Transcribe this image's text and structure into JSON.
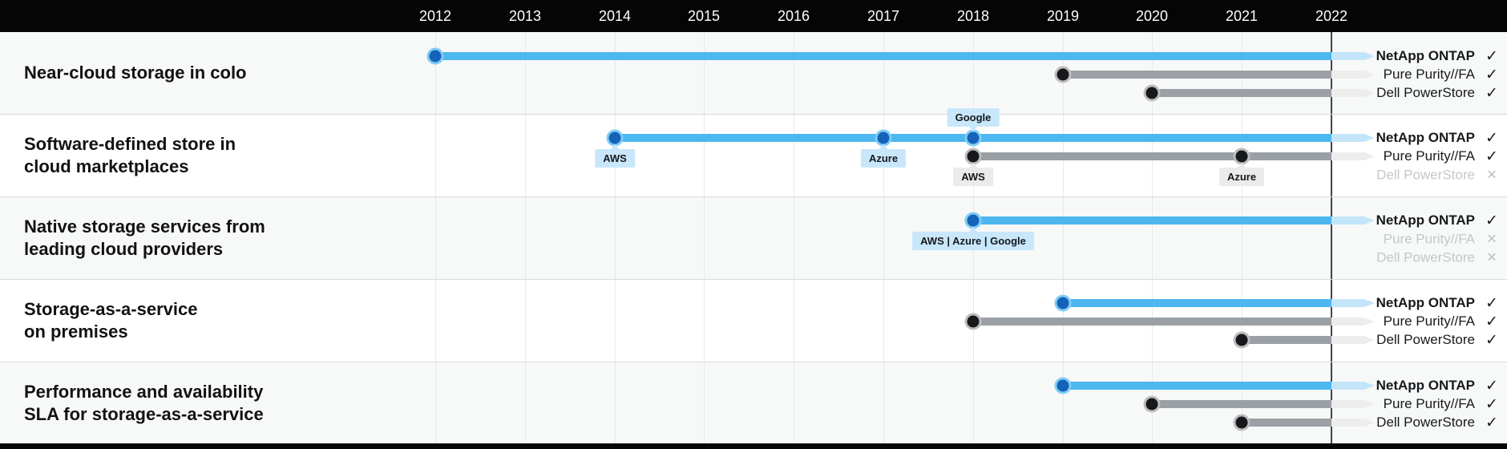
{
  "icons": {
    "available": "✓",
    "unavailable": "×"
  },
  "colors": {
    "header_bg": "#050505",
    "footer_bg": "#050505",
    "row_stripe": "#f7f8f8",
    "row_white": "#ffffff",
    "separator": "#d9dadb",
    "grid_line": "#e8eaea",
    "current_year_line": "#40454b",
    "year_text": "#ffffff",
    "title_text": "#121212",
    "blue_bar": "#4db7f0",
    "blue_bar_fade": "#c3e5fa",
    "blue_dot": "#1463b8",
    "blue_dot_ring": "#7fccf6",
    "gray_bar": "#9aa0a5",
    "gray_bar_fade": "#ededed",
    "gray_dot": "#16181c",
    "gray_dot_ring": "#bdbdbd",
    "tooltip_blue_bg": "#c9e7fb",
    "tooltip_gray_bg": "#ebebeb",
    "tooltip_text": "#15181b",
    "vendor_text": "#17191c",
    "vendor_text_disabled": "#c4c7ca",
    "check": "#1b1b1b",
    "cross": "#bcbfc2"
  },
  "chart_data": {
    "type": "timeline",
    "x_axis": {
      "unit": "year",
      "ticks": [
        2012,
        2013,
        2014,
        2015,
        2016,
        2017,
        2018,
        2019,
        2020,
        2021,
        2022
      ],
      "current_year_marker": 2022
    },
    "vendors": [
      "NetApp ONTAP",
      "Pure Purity//FA",
      "Dell PowerStore"
    ],
    "rows": [
      {
        "label_lines": [
          "Near-cloud storage in colo"
        ],
        "series": [
          {
            "vendor": "NetApp ONTAP",
            "style": "blue",
            "start_year": 2012,
            "ongoing": true,
            "available": true,
            "markers": []
          },
          {
            "vendor": "Pure Purity//FA",
            "style": "gray",
            "start_year": 2019,
            "ongoing": true,
            "available": true,
            "markers": []
          },
          {
            "vendor": "Dell PowerStore",
            "style": "gray",
            "start_year": 2020,
            "ongoing": true,
            "available": true,
            "markers": []
          }
        ]
      },
      {
        "label_lines": [
          "Software-defined store in",
          "cloud marketplaces"
        ],
        "series": [
          {
            "vendor": "NetApp ONTAP",
            "style": "blue",
            "start_year": 2014,
            "ongoing": true,
            "available": true,
            "markers": [
              {
                "year": 2014,
                "label": "AWS",
                "placement": "below"
              },
              {
                "year": 2017,
                "label": "Azure",
                "placement": "below"
              },
              {
                "year": 2018,
                "label": "Google",
                "placement": "above"
              }
            ]
          },
          {
            "vendor": "Pure Purity//FA",
            "style": "gray",
            "start_year": 2018,
            "ongoing": true,
            "available": true,
            "markers": [
              {
                "year": 2018,
                "label": "AWS",
                "placement": "below"
              },
              {
                "year": 2021,
                "label": "Azure",
                "placement": "below"
              }
            ]
          },
          {
            "vendor": "Dell PowerStore",
            "available": false
          }
        ]
      },
      {
        "label_lines": [
          "Native storage services from",
          "leading cloud providers"
        ],
        "series": [
          {
            "vendor": "NetApp ONTAP",
            "style": "blue",
            "start_year": 2018,
            "ongoing": true,
            "available": true,
            "markers": [
              {
                "year": 2018,
                "label": "AWS | Azure | Google",
                "placement": "below"
              }
            ]
          },
          {
            "vendor": "Pure Purity//FA",
            "available": false
          },
          {
            "vendor": "Dell PowerStore",
            "available": false
          }
        ]
      },
      {
        "label_lines": [
          "Storage-as-a-service",
          "on premises"
        ],
        "series": [
          {
            "vendor": "NetApp ONTAP",
            "style": "blue",
            "start_year": 2019,
            "ongoing": true,
            "available": true,
            "markers": []
          },
          {
            "vendor": "Pure Purity//FA",
            "style": "gray",
            "start_year": 2018,
            "ongoing": true,
            "available": true,
            "markers": []
          },
          {
            "vendor": "Dell PowerStore",
            "style": "gray",
            "start_year": 2021,
            "ongoing": true,
            "available": true,
            "markers": []
          }
        ]
      },
      {
        "label_lines": [
          "Performance and availability",
          "SLA for storage-as-a-service"
        ],
        "series": [
          {
            "vendor": "NetApp ONTAP",
            "style": "blue",
            "start_year": 2019,
            "ongoing": true,
            "available": true,
            "markers": []
          },
          {
            "vendor": "Pure Purity//FA",
            "style": "gray",
            "start_year": 2020,
            "ongoing": true,
            "available": true,
            "markers": []
          },
          {
            "vendor": "Dell PowerStore",
            "style": "gray",
            "start_year": 2021,
            "ongoing": true,
            "available": true,
            "markers": []
          }
        ]
      }
    ]
  }
}
